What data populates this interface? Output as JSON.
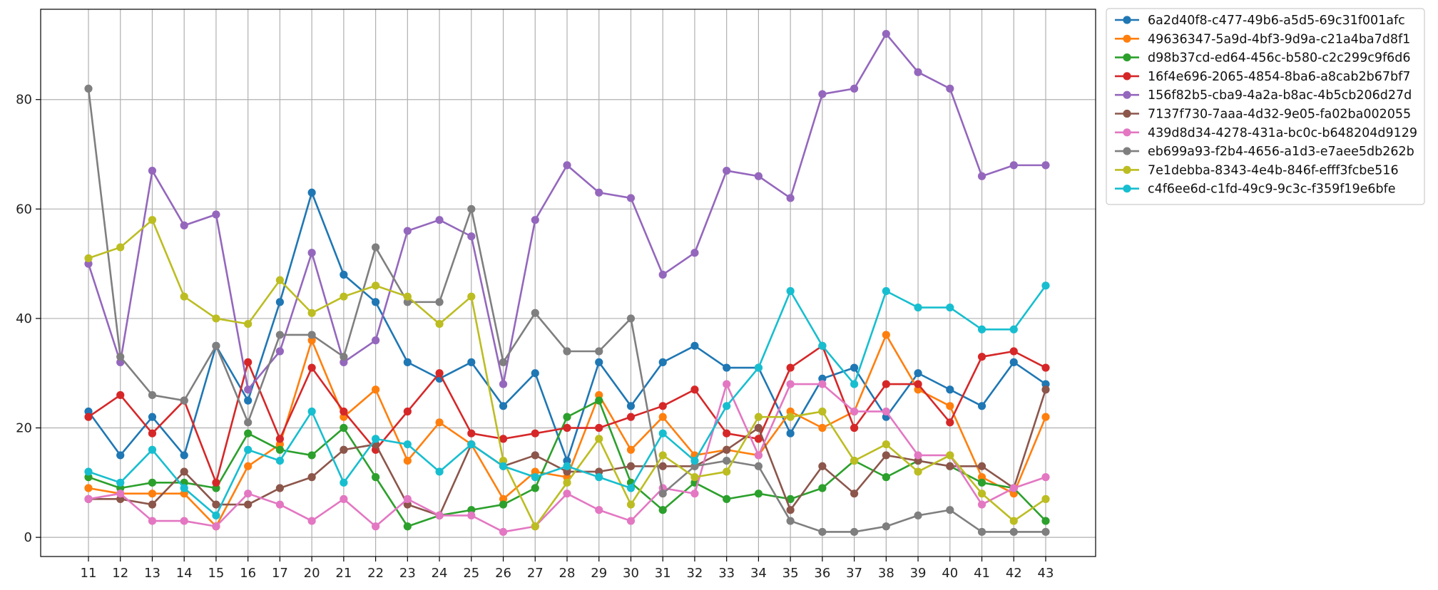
{
  "chart_data": {
    "type": "line",
    "title": "",
    "xlabel": "",
    "ylabel": "",
    "categories": [
      "11",
      "12",
      "13",
      "14",
      "15",
      "16",
      "17",
      "20",
      "21",
      "22",
      "23",
      "24",
      "25",
      "26",
      "27",
      "28",
      "29",
      "30",
      "31",
      "32",
      "33",
      "34",
      "35",
      "36",
      "37",
      "38",
      "39",
      "40",
      "41",
      "42",
      "43"
    ],
    "yticks": [
      0,
      20,
      40,
      60,
      80
    ],
    "ylim": [
      -3.5,
      96.5
    ],
    "grid": true,
    "legend_position": "outside-right",
    "series": [
      {
        "name": "6a2d40f8-c477-49b6-a5d5-69c31f001afc",
        "color": "#1f77b4",
        "values": [
          23,
          15,
          22,
          15,
          35,
          25,
          43,
          63,
          48,
          43,
          32,
          29,
          32,
          24,
          30,
          14,
          32,
          24,
          32,
          35,
          31,
          31,
          19,
          29,
          31,
          22,
          30,
          27,
          24,
          32,
          28
        ]
      },
      {
        "name": "49636347-5a9d-4bf3-9d9a-c21a4ba7d8f1",
        "color": "#ff7f0e",
        "values": [
          9,
          8,
          8,
          8,
          2,
          13,
          17,
          36,
          22,
          27,
          14,
          21,
          17,
          7,
          12,
          11,
          26,
          16,
          22,
          15,
          16,
          15,
          23,
          20,
          23,
          37,
          27,
          24,
          11,
          8,
          22
        ]
      },
      {
        "name": "d98b37cd-ed64-456c-b580-c2c299c9f6d6",
        "color": "#2ca02c",
        "values": [
          11,
          9,
          10,
          10,
          9,
          19,
          16,
          15,
          20,
          11,
          2,
          4,
          5,
          6,
          9,
          22,
          25,
          10,
          5,
          10,
          7,
          8,
          7,
          9,
          14,
          11,
          14,
          13,
          10,
          9,
          3
        ]
      },
      {
        "name": "16f4e696-2065-4854-8ba6-a8cab2b67bf7",
        "color": "#d62728",
        "values": [
          22,
          26,
          19,
          25,
          10,
          32,
          18,
          31,
          23,
          16,
          23,
          30,
          19,
          18,
          19,
          20,
          20,
          22,
          24,
          27,
          19,
          18,
          31,
          35,
          20,
          28,
          28,
          21,
          33,
          34,
          31
        ]
      },
      {
        "name": "156f82b5-cba9-4a2a-b8ac-4b5cb206d27d",
        "color": "#9467bd",
        "values": [
          50,
          32,
          67,
          57,
          59,
          27,
          34,
          52,
          32,
          36,
          56,
          58,
          55,
          28,
          58,
          68,
          63,
          62,
          48,
          52,
          67,
          66,
          62,
          81,
          82,
          92,
          85,
          82,
          66,
          68,
          68
        ]
      },
      {
        "name": "7137f730-7aaa-4d32-9e05-fa02ba002055",
        "color": "#8c564b",
        "values": [
          7,
          7,
          6,
          12,
          6,
          6,
          9,
          11,
          16,
          17,
          6,
          4,
          17,
          13,
          15,
          12,
          12,
          13,
          13,
          13,
          16,
          20,
          5,
          13,
          8,
          15,
          14,
          13,
          13,
          9,
          27
        ]
      },
      {
        "name": "439d8d34-4278-431a-bc0c-b648204d9129",
        "color": "#e377c2",
        "values": [
          7,
          8,
          3,
          3,
          2,
          8,
          6,
          3,
          7,
          2,
          7,
          4,
          4,
          1,
          2,
          8,
          5,
          3,
          9,
          8,
          28,
          15,
          28,
          28,
          23,
          23,
          15,
          15,
          6,
          9,
          11
        ]
      },
      {
        "name": "eb699a93-f2b4-4656-a1d3-e7aee5db262b",
        "color": "#7f7f7f",
        "values": [
          82,
          33,
          26,
          25,
          35,
          21,
          37,
          37,
          33,
          53,
          43,
          43,
          60,
          32,
          41,
          34,
          34,
          40,
          8,
          13,
          14,
          13,
          3,
          1,
          1,
          2,
          4,
          5,
          1,
          1,
          1
        ]
      },
      {
        "name": "7e1debba-8343-4e4b-846f-efff3fcbe516",
        "color": "#bcbd22",
        "values": [
          51,
          53,
          58,
          44,
          40,
          39,
          47,
          41,
          44,
          46,
          44,
          39,
          44,
          14,
          2,
          10,
          18,
          6,
          15,
          11,
          12,
          22,
          22,
          23,
          14,
          17,
          12,
          15,
          8,
          3,
          7
        ]
      },
      {
        "name": "c4f6ee6d-c1fd-49c9-9c3c-f359f19e6bfe",
        "color": "#17becf",
        "values": [
          12,
          10,
          16,
          9,
          4,
          16,
          14,
          23,
          10,
          18,
          17,
          12,
          17,
          13,
          11,
          13,
          11,
          9,
          19,
          14,
          24,
          31,
          45,
          35,
          28,
          45,
          42,
          42,
          38,
          38,
          46
        ]
      }
    ]
  }
}
